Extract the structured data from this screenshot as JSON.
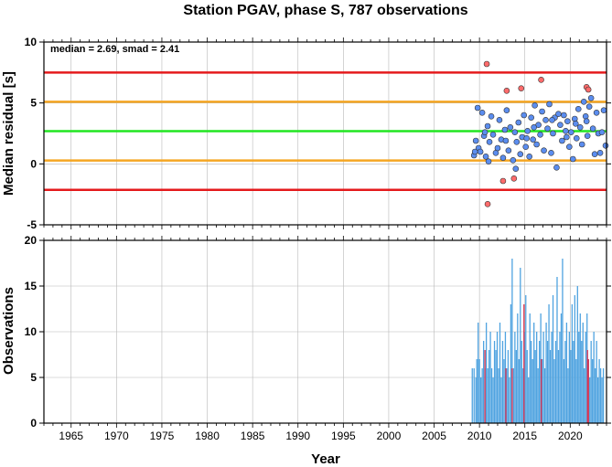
{
  "chart_data": [
    {
      "type": "scatter",
      "title": "Station PGAV, phase S, 787 observations",
      "xlabel": "",
      "ylabel": "Median residual [s]",
      "annotation": "median = 2.69, smad = 2.41",
      "xlim": [
        1962.0,
        2024.0
      ],
      "ylim": [
        -5,
        10
      ],
      "yticks": [
        -5,
        0,
        5,
        10
      ],
      "grid": true,
      "reference_lines": [
        {
          "value": 7.5,
          "color": "#e41a1c"
        },
        {
          "value": 5.1,
          "color": "#f5a623"
        },
        {
          "value": 2.69,
          "color": "#22e622"
        },
        {
          "value": 0.28,
          "color": "#f5a623"
        },
        {
          "value": -2.13,
          "color": "#e41a1c"
        }
      ],
      "series": [
        {
          "color": "#5b8def",
          "points": [
            [
              2009.4,
              0.7
            ],
            [
              2009.6,
              1.9
            ],
            [
              2009.8,
              4.6
            ],
            [
              2009.9,
              1.3
            ],
            [
              2010.1,
              1.0
            ],
            [
              2010.3,
              4.2
            ],
            [
              2010.5,
              2.3
            ],
            [
              2010.7,
              0.6
            ],
            [
              2010.9,
              3.1
            ],
            [
              2011.1,
              1.8
            ],
            [
              2011.3,
              3.9
            ],
            [
              2011.5,
              2.4
            ],
            [
              2011.8,
              0.9
            ],
            [
              2012.0,
              1.3
            ],
            [
              2012.2,
              3.6
            ],
            [
              2012.4,
              2.0
            ],
            [
              2012.6,
              0.5
            ],
            [
              2012.8,
              2.8
            ],
            [
              2013.0,
              4.4
            ],
            [
              2013.2,
              1.1
            ],
            [
              2013.4,
              3.0
            ],
            [
              2013.7,
              0.3
            ],
            [
              2013.9,
              2.6
            ],
            [
              2014.1,
              1.8
            ],
            [
              2014.3,
              3.4
            ],
            [
              2014.5,
              0.8
            ],
            [
              2014.7,
              2.2
            ],
            [
              2014.9,
              4.0
            ],
            [
              2015.1,
              1.4
            ],
            [
              2015.3,
              2.7
            ],
            [
              2015.5,
              0.6
            ],
            [
              2015.7,
              3.8
            ],
            [
              2015.9,
              2.0
            ],
            [
              2016.1,
              4.8
            ],
            [
              2016.3,
              1.6
            ],
            [
              2016.5,
              3.2
            ],
            [
              2016.7,
              2.4
            ],
            [
              2016.9,
              4.3
            ],
            [
              2017.1,
              1.1
            ],
            [
              2017.3,
              3.6
            ],
            [
              2017.5,
              2.9
            ],
            [
              2017.7,
              4.9
            ],
            [
              2017.9,
              0.9
            ],
            [
              2018.1,
              2.5
            ],
            [
              2018.3,
              3.8
            ],
            [
              2018.5,
              -0.3
            ],
            [
              2018.7,
              4.1
            ],
            [
              2018.9,
              3.2
            ],
            [
              2019.1,
              1.9
            ],
            [
              2019.3,
              4.0
            ],
            [
              2019.5,
              2.7
            ],
            [
              2019.7,
              3.5
            ],
            [
              2019.9,
              1.4
            ],
            [
              2020.1,
              2.6
            ],
            [
              2020.3,
              0.4
            ],
            [
              2020.5,
              3.7
            ],
            [
              2020.7,
              2.1
            ],
            [
              2020.9,
              4.5
            ],
            [
              2021.1,
              3.0
            ],
            [
              2021.3,
              1.6
            ],
            [
              2021.5,
              5.1
            ],
            [
              2021.7,
              3.9
            ],
            [
              2021.9,
              2.3
            ],
            [
              2022.1,
              4.7
            ],
            [
              2022.3,
              5.4
            ],
            [
              2022.5,
              2.9
            ],
            [
              2022.7,
              0.8
            ],
            [
              2022.9,
              4.2
            ],
            [
              2023.1,
              2.5
            ],
            [
              2023.3,
              0.9
            ],
            [
              2023.5,
              2.6
            ],
            [
              2023.7,
              4.4
            ],
            [
              2023.9,
              1.5
            ],
            [
              2009.5,
              1.0
            ],
            [
              2011.0,
              0.2
            ],
            [
              2012.9,
              1.9
            ],
            [
              2015.2,
              2.1
            ],
            [
              2016.0,
              3.0
            ],
            [
              2018.0,
              3.6
            ],
            [
              2020.6,
              3.3
            ],
            [
              2021.8,
              3.5
            ],
            [
              2019.6,
              2.2
            ],
            [
              2014.0,
              -0.4
            ],
            [
              2010.6,
              2.6
            ]
          ]
        },
        {
          "color": "#ff6b6b",
          "points": [
            [
              2010.8,
              8.2
            ],
            [
              2010.9,
              -3.3
            ],
            [
              2012.6,
              -1.4
            ],
            [
              2013.0,
              6.0
            ],
            [
              2013.8,
              -1.2
            ],
            [
              2014.6,
              6.2
            ],
            [
              2016.8,
              6.9
            ],
            [
              2021.8,
              6.3
            ],
            [
              2022.0,
              6.1
            ]
          ]
        }
      ]
    },
    {
      "type": "bar",
      "title": "",
      "xlabel": "Year",
      "ylabel": "Observations",
      "xlim": [
        1962.0,
        2024.0
      ],
      "ylim": [
        0,
        20
      ],
      "yticks": [
        0,
        5,
        10,
        15,
        20
      ],
      "xticks": [
        1965,
        1970,
        1975,
        1980,
        1985,
        1990,
        1995,
        2000,
        2005,
        2010,
        2015,
        2020
      ],
      "grid": true,
      "series": [
        {
          "color": "#4fa3e0",
          "bars": [
            [
              2009.2,
              6
            ],
            [
              2009.4,
              6
            ],
            [
              2009.6,
              5
            ],
            [
              2009.7,
              7
            ],
            [
              2009.85,
              11
            ],
            [
              2010.0,
              7
            ],
            [
              2010.15,
              5
            ],
            [
              2010.3,
              6
            ],
            [
              2010.45,
              9
            ],
            [
              2010.6,
              6
            ],
            [
              2010.75,
              11
            ],
            [
              2010.9,
              6
            ],
            [
              2011.05,
              8
            ],
            [
              2011.2,
              10
            ],
            [
              2011.35,
              6
            ],
            [
              2011.5,
              5
            ],
            [
              2011.65,
              9
            ],
            [
              2011.8,
              8
            ],
            [
              2011.95,
              10
            ],
            [
              2012.1,
              6
            ],
            [
              2012.25,
              11
            ],
            [
              2012.4,
              5
            ],
            [
              2012.55,
              9
            ],
            [
              2012.7,
              7
            ],
            [
              2012.85,
              10
            ],
            [
              2013.0,
              6
            ],
            [
              2013.15,
              8
            ],
            [
              2013.3,
              5
            ],
            [
              2013.45,
              13
            ],
            [
              2013.6,
              18
            ],
            [
              2013.75,
              6
            ],
            [
              2013.9,
              10
            ],
            [
              2014.05,
              8
            ],
            [
              2014.2,
              12
            ],
            [
              2014.35,
              7
            ],
            [
              2014.5,
              17
            ],
            [
              2014.65,
              9
            ],
            [
              2014.8,
              6
            ],
            [
              2014.95,
              10
            ],
            [
              2015.1,
              14
            ],
            [
              2015.25,
              8
            ],
            [
              2015.4,
              5
            ],
            [
              2015.55,
              12
            ],
            [
              2015.7,
              9
            ],
            [
              2015.85,
              7
            ],
            [
              2016.0,
              11
            ],
            [
              2016.15,
              8
            ],
            [
              2016.3,
              10
            ],
            [
              2016.45,
              6
            ],
            [
              2016.6,
              9
            ],
            [
              2016.75,
              12
            ],
            [
              2016.9,
              7
            ],
            [
              2017.05,
              10
            ],
            [
              2017.2,
              6
            ],
            [
              2017.35,
              11
            ],
            [
              2017.5,
              9
            ],
            [
              2017.65,
              13
            ],
            [
              2017.8,
              8
            ],
            [
              2017.95,
              10
            ],
            [
              2018.1,
              14
            ],
            [
              2018.25,
              7
            ],
            [
              2018.4,
              9
            ],
            [
              2018.55,
              16
            ],
            [
              2018.7,
              8
            ],
            [
              2018.85,
              10
            ],
            [
              2019.0,
              12
            ],
            [
              2019.15,
              18
            ],
            [
              2019.3,
              7
            ],
            [
              2019.45,
              9
            ],
            [
              2019.6,
              11
            ],
            [
              2019.75,
              6
            ],
            [
              2019.9,
              10
            ],
            [
              2020.05,
              8
            ],
            [
              2020.2,
              13
            ],
            [
              2020.35,
              9
            ],
            [
              2020.5,
              14
            ],
            [
              2020.65,
              7
            ],
            [
              2020.8,
              15
            ],
            [
              2020.95,
              10
            ],
            [
              2021.1,
              12
            ],
            [
              2021.25,
              9
            ],
            [
              2021.4,
              11
            ],
            [
              2021.55,
              6
            ],
            [
              2021.7,
              10
            ],
            [
              2021.85,
              12
            ],
            [
              2022.0,
              7
            ],
            [
              2022.15,
              5
            ],
            [
              2022.3,
              9
            ],
            [
              2022.45,
              7
            ],
            [
              2022.6,
              10
            ],
            [
              2022.75,
              6
            ],
            [
              2022.9,
              9
            ],
            [
              2023.05,
              5
            ],
            [
              2023.2,
              7
            ],
            [
              2023.35,
              6
            ],
            [
              2023.5,
              5
            ],
            [
              2023.65,
              6
            ]
          ]
        },
        {
          "color": "#d9304f",
          "bars": [
            [
              2010.6,
              8
            ],
            [
              2012.9,
              6
            ],
            [
              2013.6,
              6
            ],
            [
              2014.9,
              13
            ],
            [
              2016.8,
              7
            ],
            [
              2021.9,
              8
            ],
            [
              2022.0,
              7
            ]
          ]
        }
      ]
    }
  ]
}
